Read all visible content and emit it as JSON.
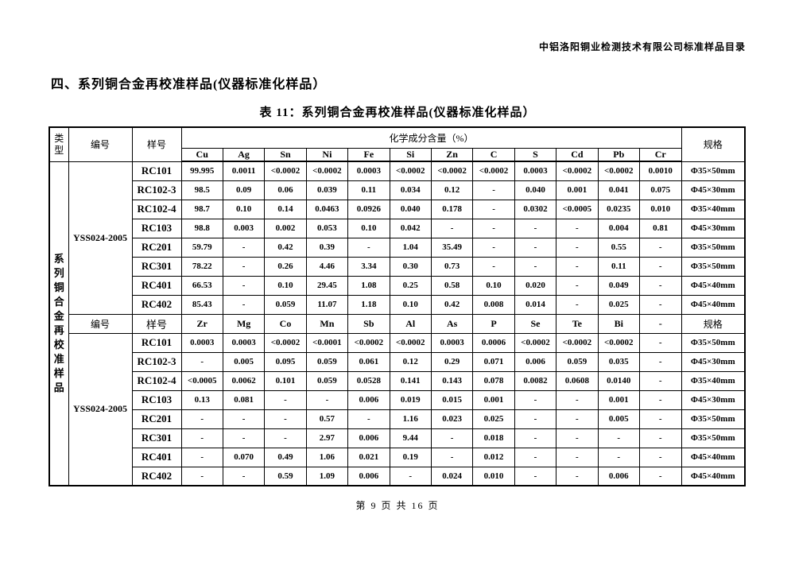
{
  "page": {
    "header_right": "中铝洛阳铜业检测技术有限公司标准样品目录",
    "section_heading": "四、系列铜合金再校准样品(仪器标准化样品）",
    "table_title": "表 11：系列铜合金再校准样品(仪器标准化样品）",
    "footer": "第 9 页 共 16 页"
  },
  "table": {
    "type_header": "类型",
    "type_label": "系列铜合金再校准样品",
    "id_header": "编号",
    "sample_header": "样号",
    "composition_header": "化学成分含量（%）",
    "spec_header": "规格",
    "sections": [
      {
        "id_value": "YSS024-2005",
        "elements": [
          "Cu",
          "Ag",
          "Sn",
          "Ni",
          "Fe",
          "Si",
          "Zn",
          "C",
          "S",
          "Cd",
          "Pb",
          "Cr"
        ],
        "rows": [
          {
            "sample": "RC101",
            "values": [
              "99.995",
              "0.0011",
              "<0.0002",
              "<0.0002",
              "0.0003",
              "<0.0002",
              "<0.0002",
              "<0.0002",
              "0.0003",
              "<0.0002",
              "<0.0002",
              "0.0010"
            ],
            "spec": "Φ35×50mm"
          },
          {
            "sample": "RC102-3",
            "values": [
              "98.5",
              "0.09",
              "0.06",
              "0.039",
              "0.11",
              "0.034",
              "0.12",
              "-",
              "0.040",
              "0.001",
              "0.041",
              "0.075"
            ],
            "spec": "Φ45×30mm"
          },
          {
            "sample": "RC102-4",
            "values": [
              "98.7",
              "0.10",
              "0.14",
              "0.0463",
              "0.0926",
              "0.040",
              "0.178",
              "-",
              "0.0302",
              "<0.0005",
              "0.0235",
              "0.010"
            ],
            "spec": "Φ35×40mm"
          },
          {
            "sample": "RC103",
            "values": [
              "98.8",
              "0.003",
              "0.002",
              "0.053",
              "0.10",
              "0.042",
              "-",
              "-",
              "-",
              "-",
              "0.004",
              "0.81"
            ],
            "spec": "Φ45×30mm"
          },
          {
            "sample": "RC201",
            "values": [
              "59.79",
              "-",
              "0.42",
              "0.39",
              "-",
              "1.04",
              "35.49",
              "-",
              "-",
              "-",
              "0.55",
              "-"
            ],
            "spec": "Φ35×50mm"
          },
          {
            "sample": "RC301",
            "values": [
              "78.22",
              "-",
              "0.26",
              "4.46",
              "3.34",
              "0.30",
              "0.73",
              "-",
              "-",
              "-",
              "0.11",
              "-"
            ],
            "spec": "Φ35×50mm"
          },
          {
            "sample": "RC401",
            "values": [
              "66.53",
              "-",
              "0.10",
              "29.45",
              "1.08",
              "0.25",
              "0.58",
              "0.10",
              "0.020",
              "-",
              "0.049",
              "-"
            ],
            "spec": "Φ45×40mm"
          },
          {
            "sample": "RC402",
            "values": [
              "85.43",
              "-",
              "0.059",
              "11.07",
              "1.18",
              "0.10",
              "0.42",
              "0.008",
              "0.014",
              "-",
              "0.025",
              "-"
            ],
            "spec": "Φ45×40mm"
          }
        ]
      },
      {
        "id_value": "YSS024-2005",
        "elements": [
          "Zr",
          "Mg",
          "Co",
          "Mn",
          "Sb",
          "Al",
          "As",
          "P",
          "Se",
          "Te",
          "Bi",
          "-"
        ],
        "rows": [
          {
            "sample": "RC101",
            "values": [
              "0.0003",
              "0.0003",
              "<0.0002",
              "<0.0001",
              "<0.0002",
              "<0.0002",
              "0.0003",
              "0.0006",
              "<0.0002",
              "<0.0002",
              "<0.0002",
              "-"
            ],
            "spec": "Φ35×50mm"
          },
          {
            "sample": "RC102-3",
            "values": [
              "-",
              "0.005",
              "0.095",
              "0.059",
              "0.061",
              "0.12",
              "0.29",
              "0.071",
              "0.006",
              "0.059",
              "0.035",
              "-"
            ],
            "spec": "Φ45×30mm"
          },
          {
            "sample": "RC102-4",
            "values": [
              "<0.0005",
              "0.0062",
              "0.101",
              "0.059",
              "0.0528",
              "0.141",
              "0.143",
              "0.078",
              "0.0082",
              "0.0608",
              "0.0140",
              "-"
            ],
            "spec": "Φ35×40mm"
          },
          {
            "sample": "RC103",
            "values": [
              "0.13",
              "0.081",
              "-",
              "-",
              "0.006",
              "0.019",
              "0.015",
              "0.001",
              "-",
              "-",
              "0.001",
              "-"
            ],
            "spec": "Φ45×30mm"
          },
          {
            "sample": "RC201",
            "values": [
              "-",
              "-",
              "-",
              "0.57",
              "-",
              "1.16",
              "0.023",
              "0.025",
              "-",
              "-",
              "0.005",
              "-"
            ],
            "spec": "Φ35×50mm"
          },
          {
            "sample": "RC301",
            "values": [
              "-",
              "-",
              "-",
              "2.97",
              "0.006",
              "9.44",
              "-",
              "0.018",
              "-",
              "-",
              "-",
              "-"
            ],
            "spec": "Φ35×50mm"
          },
          {
            "sample": "RC401",
            "values": [
              "-",
              "0.070",
              "0.49",
              "1.06",
              "0.021",
              "0.19",
              "-",
              "0.012",
              "-",
              "-",
              "-",
              "-"
            ],
            "spec": "Φ45×40mm"
          },
          {
            "sample": "RC402",
            "values": [
              "-",
              "-",
              "0.59",
              "1.09",
              "0.006",
              "-",
              "0.024",
              "0.010",
              "-",
              "-",
              "0.006",
              "-"
            ],
            "spec": "Φ45×40mm"
          }
        ]
      }
    ]
  }
}
